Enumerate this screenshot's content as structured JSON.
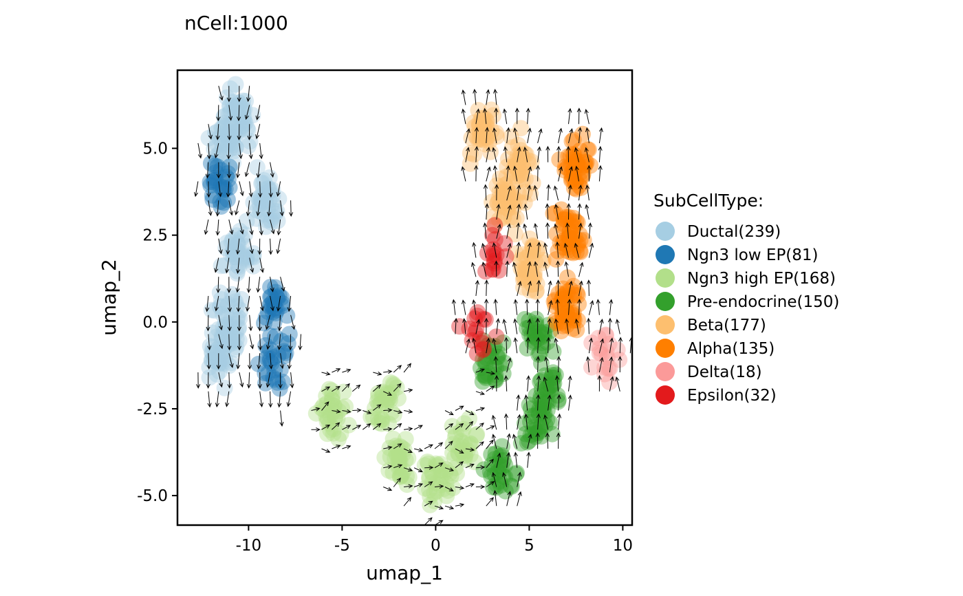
{
  "chart_data": {
    "type": "scatter",
    "title": "nCell:1000",
    "xlabel": "umap_1",
    "ylabel": "umap_2",
    "xlim": [
      -13.8,
      10.5
    ],
    "ylim": [
      -5.85,
      7.25
    ],
    "xticks": [
      {
        "value": -10,
        "label": "-10"
      },
      {
        "value": -5,
        "label": "-5"
      },
      {
        "value": 0,
        "label": "0"
      },
      {
        "value": 5,
        "label": "5"
      },
      {
        "value": 10,
        "label": "10"
      }
    ],
    "yticks": [
      {
        "value": 5,
        "label": "5.0"
      },
      {
        "value": 2.5,
        "label": "2.5"
      },
      {
        "value": 0,
        "label": "0.0"
      },
      {
        "value": -2.5,
        "label": "-2.5"
      },
      {
        "value": -5,
        "label": "-5.0"
      }
    ],
    "grid": false,
    "legend": {
      "title": "SubCellType:",
      "position": "right"
    },
    "overlay": "velocity arrows on a regular grid",
    "series": [
      {
        "name": "Ductal(239)",
        "color": "#A6CEE3",
        "centers": [
          [
            -11.2,
            5.2
          ],
          [
            -10.5,
            2.0
          ],
          [
            -11.0,
            0.0
          ],
          [
            -9.0,
            3.5
          ],
          [
            -11.5,
            -1.0
          ],
          [
            -10.5,
            6.0
          ]
        ]
      },
      {
        "name": "Ngn3 low EP(81)",
        "color": "#1F78B4",
        "centers": [
          [
            -8.8,
            -1.2
          ],
          [
            -11.5,
            4.0
          ],
          [
            -8.6,
            0.4
          ]
        ]
      },
      {
        "name": "Ngn3 high EP(168)",
        "color": "#B2DF8A",
        "centers": [
          [
            -5.5,
            -2.6
          ],
          [
            -2.0,
            -4.1
          ],
          [
            0.0,
            -4.6
          ],
          [
            -2.6,
            -2.3
          ],
          [
            1.5,
            -3.5
          ]
        ]
      },
      {
        "name": "Pre-endocrine(150)",
        "color": "#33A02C",
        "centers": [
          [
            5.5,
            -3.0
          ],
          [
            3.5,
            -4.3
          ],
          [
            5.5,
            -0.5
          ],
          [
            3.0,
            -1.2
          ],
          [
            6.0,
            -2.0
          ]
        ]
      },
      {
        "name": "Beta(177)",
        "color": "#FDBF6F",
        "centers": [
          [
            2.5,
            5.5
          ],
          [
            3.8,
            3.5
          ],
          [
            5.0,
            1.5
          ],
          [
            4.5,
            4.5
          ]
        ]
      },
      {
        "name": "Alpha(135)",
        "color": "#FF7F00",
        "centers": [
          [
            7.5,
            4.5
          ],
          [
            7.2,
            2.5
          ],
          [
            7.0,
            0.5
          ]
        ]
      },
      {
        "name": "Delta(18)",
        "color": "#FB9A99",
        "centers": [
          [
            9.0,
            -1.1
          ]
        ]
      },
      {
        "name": "Epsilon(32)",
        "color": "#E31A1C",
        "centers": [
          [
            3.2,
            2.1
          ],
          [
            2.2,
            -0.3
          ]
        ]
      }
    ]
  }
}
